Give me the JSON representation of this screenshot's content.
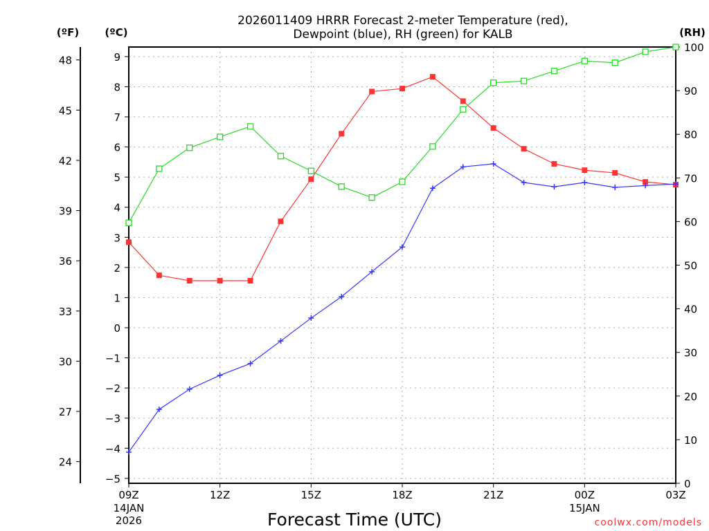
{
  "chart_data": {
    "type": "line",
    "title": [
      "2026011409 HRRR Forecast 2-meter Temperature (red),",
      "Dewpoint (blue), RH (green) for KALB"
    ],
    "xlabel": "Forecast Time (UTC)",
    "left_f_label": "(ºF)",
    "left_c_label": "(ºC)",
    "right_label": "(RH)",
    "credit": "coolwx.com/models",
    "x_hours": [
      0,
      1,
      2,
      3,
      4,
      5,
      6,
      7,
      8,
      9,
      10,
      11,
      12,
      13,
      14,
      15,
      16,
      17,
      18
    ],
    "x_ticks": [
      {
        "h": 0,
        "label": "09Z",
        "sub": [
          "14JAN",
          "2026"
        ]
      },
      {
        "h": 3,
        "label": "12Z"
      },
      {
        "h": 6,
        "label": "15Z"
      },
      {
        "h": 9,
        "label": "18Z"
      },
      {
        "h": 12,
        "label": "21Z"
      },
      {
        "h": 15,
        "label": "00Z",
        "sub": [
          "15JAN"
        ]
      },
      {
        "h": 18,
        "label": "03Z"
      }
    ],
    "c_ylim": [
      -5.2,
      9.3
    ],
    "c_ticks": [
      -5,
      -4,
      -3,
      -2,
      -1,
      0,
      1,
      2,
      3,
      4,
      5,
      6,
      7,
      8,
      9
    ],
    "f_ticks": [
      24,
      27,
      30,
      33,
      36,
      39,
      42,
      45,
      48
    ],
    "rh_ylim": [
      0,
      100
    ],
    "rh_ticks": [
      0,
      10,
      20,
      30,
      40,
      50,
      60,
      70,
      80,
      90,
      100
    ],
    "series": [
      {
        "name": "Temperature",
        "color": "#ff3333",
        "marker": "filled-square",
        "axis": "c",
        "values": [
          2.84,
          1.74,
          1.56,
          1.56,
          1.56,
          3.53,
          4.93,
          6.44,
          7.84,
          7.94,
          8.33,
          7.52,
          6.63,
          5.94,
          5.44,
          5.23,
          5.14,
          4.84,
          4.75
        ]
      },
      {
        "name": "Dewpoint",
        "color": "#3333ff",
        "marker": "plus",
        "axis": "c",
        "values": [
          -4.13,
          -2.71,
          -2.04,
          -1.58,
          -1.19,
          -0.44,
          0.32,
          1.03,
          1.86,
          2.68,
          4.63,
          5.34,
          5.44,
          4.82,
          4.68,
          4.82,
          4.66,
          4.72,
          4.77
        ]
      },
      {
        "name": "RH",
        "color": "#22dd22",
        "marker": "open-square",
        "axis": "rh",
        "values": [
          59.7,
          72.1,
          76.9,
          79.4,
          81.8,
          75.0,
          71.6,
          68.0,
          65.5,
          69.1,
          77.2,
          85.7,
          91.8,
          92.2,
          94.5,
          96.8,
          96.4,
          98.9,
          100
        ]
      }
    ]
  }
}
